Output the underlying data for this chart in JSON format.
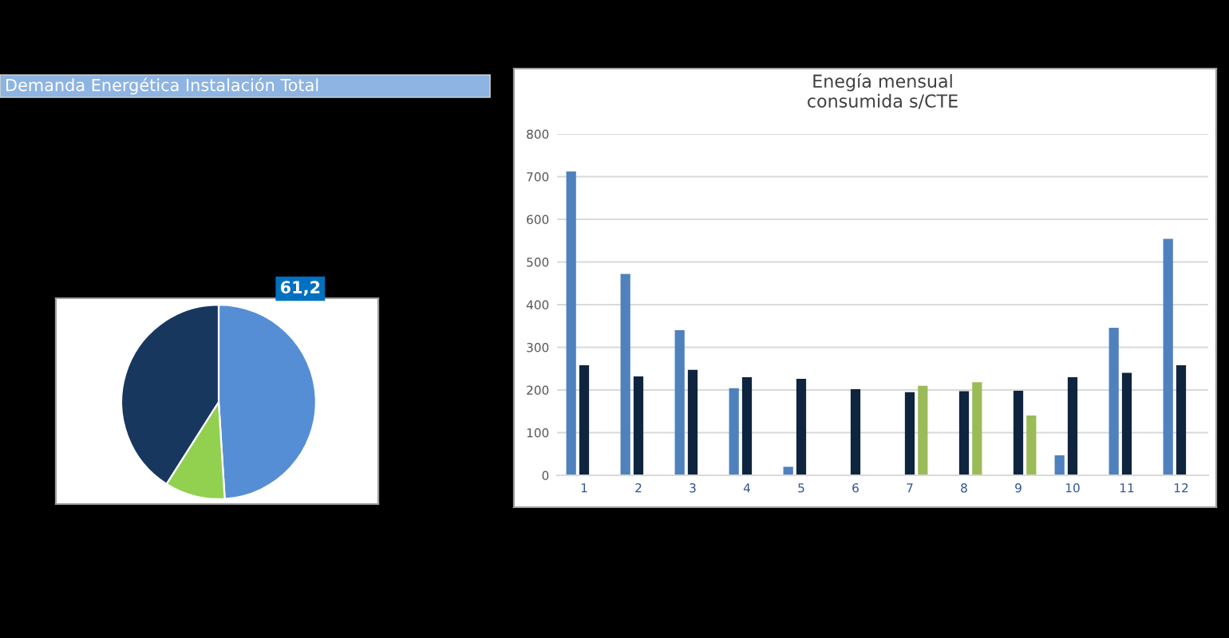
{
  "chart_data": [
    {
      "type": "pie",
      "title": "Demanda Energética Instalación Total",
      "categories": [
        null,
        null,
        null
      ],
      "values": [
        49,
        10,
        41
      ],
      "colors": [
        "#558ed5",
        "#92d050",
        "#17375e"
      ],
      "annotations": [
        "61,2"
      ]
    },
    {
      "type": "bar",
      "title": "Enegía mensual\nconsumida s/CTE",
      "categories": [
        "1",
        "2",
        "3",
        "4",
        "5",
        "6",
        "7",
        "8",
        "9",
        "10",
        "11",
        "12"
      ],
      "series": [
        {
          "color": "#4f81bd",
          "values": [
            712,
            472,
            340,
            204,
            20,
            null,
            null,
            null,
            null,
            47,
            346,
            554
          ]
        },
        {
          "color": "#0f243e",
          "values": [
            258,
            232,
            247,
            230,
            226,
            202,
            195,
            197,
            198,
            230,
            240,
            258
          ]
        },
        {
          "color": "#9bbb59",
          "values": [
            null,
            null,
            null,
            null,
            null,
            null,
            210,
            218,
            140,
            null,
            null,
            null
          ]
        }
      ],
      "ylim": [
        0,
        800
      ],
      "yticks": [
        0,
        100,
        200,
        300,
        400,
        500,
        600,
        700,
        800
      ],
      "grid": "y"
    }
  ]
}
